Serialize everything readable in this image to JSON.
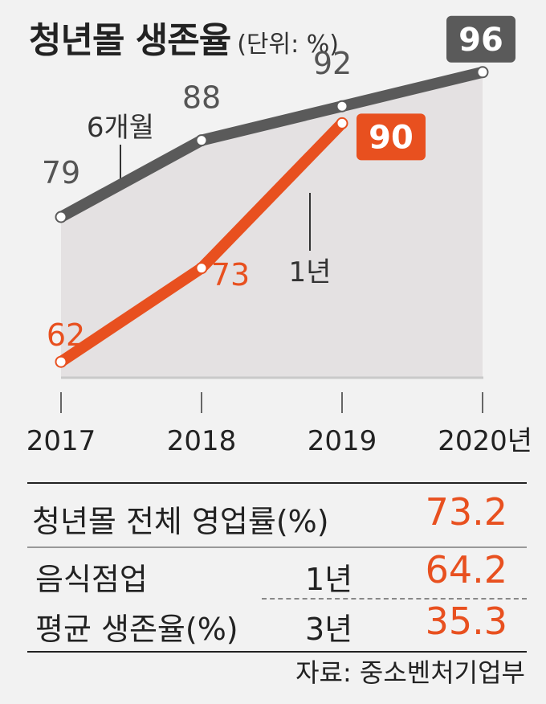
{
  "title": "청년몰 생존율",
  "unit": "(단위: %)",
  "chart_data": {
    "type": "line",
    "x": [
      "2017",
      "2018",
      "2019",
      "2020년"
    ],
    "series": [
      {
        "name": "6개월",
        "values": [
          79,
          88,
          92,
          96
        ],
        "color": "#5a5a5a"
      },
      {
        "name": "1년",
        "values": [
          62,
          73,
          90,
          null
        ],
        "color": "#e8501f"
      }
    ],
    "fill_color": "#e4e1e2"
  },
  "stats": {
    "overall_label": "청년몰 전체 영업률(%)",
    "overall_value": "73.2",
    "food_label_line1": "음식점업",
    "food_label_line2": "평균 생존율(%)",
    "year1_label": "1년",
    "year1_value": "64.2",
    "year3_label": "3년",
    "year3_value": "35.3"
  },
  "source": "자료: 중소벤처기업부"
}
